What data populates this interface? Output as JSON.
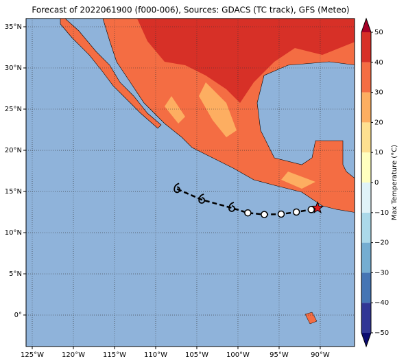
{
  "title": "Forecast of 2022061900 (f000-006), Sources: GDACS (TC track), GFS (Meteo)",
  "map": {
    "lonlim": [
      -125.75,
      -85.83
    ],
    "latlim": [
      -3.83,
      36
    ],
    "xticks": [
      {
        "value": -125,
        "label": "125°W"
      },
      {
        "value": -120,
        "label": "120°W"
      },
      {
        "value": -115,
        "label": "115°W"
      },
      {
        "value": -110,
        "label": "110°W"
      },
      {
        "value": -105,
        "label": "105°W"
      },
      {
        "value": -100,
        "label": "100°W"
      },
      {
        "value": -95,
        "label": "95°W"
      },
      {
        "value": -90,
        "label": "90°W"
      }
    ],
    "yticks": [
      {
        "value": 35,
        "label": "35°N"
      },
      {
        "value": 30,
        "label": "30°N"
      },
      {
        "value": 25,
        "label": "25°N"
      },
      {
        "value": 20,
        "label": "20°N"
      },
      {
        "value": 15,
        "label": "15°N"
      },
      {
        "value": 10,
        "label": "10°N"
      },
      {
        "value": 5,
        "label": "5°N"
      },
      {
        "value": 0,
        "label": "0°"
      }
    ],
    "grid": true,
    "ocean_color": "#8fb3da",
    "track": {
      "lon": [
        -107.4,
        -104.4,
        -100.75,
        -98.8,
        -96.8,
        -94.75,
        -92.9,
        -91.1,
        -90.33
      ],
      "lat": [
        15.3,
        14.0,
        13.0,
        12.4,
        12.2,
        12.25,
        12.5,
        12.8,
        13.0
      ],
      "markers": [
        "cyclone",
        "cyclone",
        "cyclone",
        "circle",
        "circle",
        "circle",
        "circle",
        "circle",
        "star"
      ],
      "star_color": "#e31a1c"
    }
  },
  "colorbar": {
    "label": "Max Temperature (°C)",
    "lim": [
      -50,
      50
    ],
    "ticks": [
      {
        "value": -50,
        "label": "−50"
      },
      {
        "value": -40,
        "label": "−40"
      },
      {
        "value": -30,
        "label": "−30"
      },
      {
        "value": -20,
        "label": "−20"
      },
      {
        "value": -10,
        "label": "−10"
      },
      0,
      10,
      20,
      30,
      40,
      50
    ],
    "colors": [
      "#313695",
      "#4575b4",
      "#74add1",
      "#abd9e9",
      "#e0f3f8",
      "#ffffbf",
      "#fee090",
      "#fdae61",
      "#f46d43",
      "#d73027"
    ],
    "extend_colors": [
      "#0b0b70",
      "#a50026"
    ]
  }
}
